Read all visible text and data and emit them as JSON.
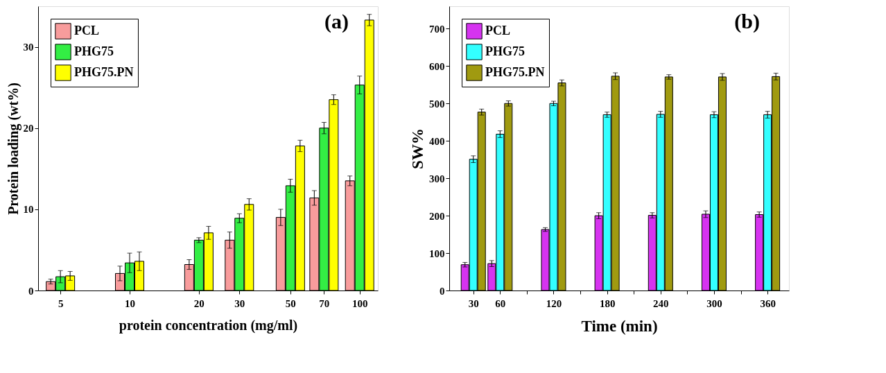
{
  "chart_data": [
    {
      "type": "bar",
      "xlabel": "protein concentration (mg/ml)",
      "ylabel": "Protein loading (wt%)",
      "annotations": [
        "(a)"
      ],
      "log": "x",
      "grid": false,
      "legend": "top left",
      "x": [
        5,
        10,
        20,
        30,
        50,
        70,
        100
      ],
      "xlim": [
        4,
        120
      ],
      "xticks": [
        5,
        10,
        20,
        30,
        50,
        70,
        100
      ],
      "ylim": [
        0,
        35
      ],
      "yticks": [
        0,
        10,
        20,
        30
      ],
      "series": [
        {
          "name": "PCL",
          "color": "#f89c9c",
          "values": [
            1.1,
            2.1,
            3.2,
            6.2,
            9.0,
            11.4,
            13.5
          ],
          "errors": [
            0.3,
            0.9,
            0.6,
            1.0,
            1.0,
            0.9,
            0.6
          ]
        },
        {
          "name": "PHG75",
          "color": "#33ee44",
          "values": [
            1.7,
            3.4,
            6.2,
            8.9,
            12.9,
            20.0,
            25.3
          ],
          "errors": [
            0.75,
            1.2,
            0.3,
            0.55,
            0.8,
            0.7,
            1.1
          ]
        },
        {
          "name": "PHG75.PN",
          "color": "#ffff00",
          "values": [
            1.8,
            3.6,
            7.1,
            10.6,
            17.8,
            23.5,
            33.3
          ],
          "errors": [
            0.55,
            1.15,
            0.8,
            0.7,
            0.7,
            0.6,
            0.7
          ]
        }
      ]
    },
    {
      "type": "bar",
      "xlabel": "Time (min)",
      "ylabel": "SW%",
      "annotations": [
        "(b)"
      ],
      "grid": false,
      "legend": "top left",
      "x": [
        30,
        60,
        120,
        180,
        240,
        300,
        360
      ],
      "xlim": [
        3,
        384
      ],
      "xticks": [
        30,
        60,
        {
          "value": 90,
          "label": null
        },
        120,
        {
          "value": 150,
          "label": null
        },
        180,
        {
          "value": 210,
          "label": null
        },
        240,
        {
          "value": 270,
          "label": null
        },
        300,
        {
          "value": 330,
          "label": null
        },
        360
      ],
      "ylim": [
        0,
        760
      ],
      "yticks": [
        0,
        100,
        200,
        300,
        400,
        500,
        600,
        700
      ],
      "series": [
        {
          "name": "PCL",
          "color": "#d633f0",
          "values": [
            69,
            72,
            163,
            200,
            201,
            204,
            203
          ],
          "errors": [
            6,
            8,
            5,
            8,
            7,
            9,
            7
          ]
        },
        {
          "name": "PHG75",
          "color": "#33ffff",
          "values": [
            351,
            418,
            500,
            470,
            471,
            470,
            470
          ],
          "errors": [
            9,
            9,
            6,
            7,
            8,
            8,
            9
          ]
        },
        {
          "name": "PHG75.PN",
          "color": "#a09a10",
          "values": [
            477,
            500,
            555,
            573,
            571,
            571,
            572
          ],
          "errors": [
            8,
            7,
            8,
            9,
            6,
            9,
            9
          ]
        }
      ]
    }
  ]
}
